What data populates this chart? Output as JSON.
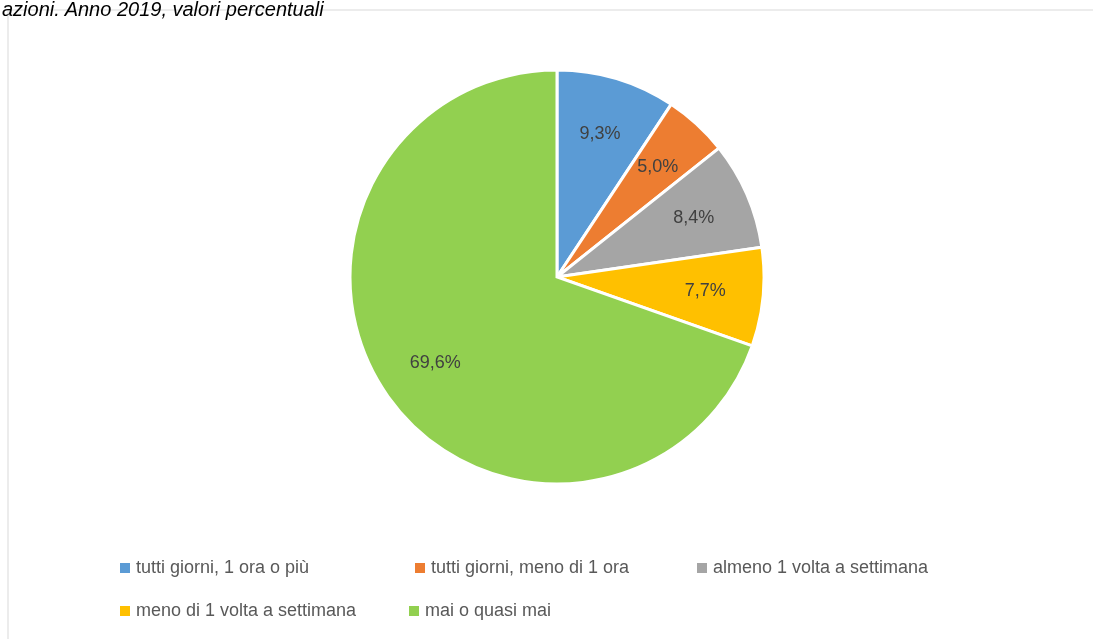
{
  "chart_data": {
    "type": "pie",
    "title": "azioni. Anno 2019, valori percentuali",
    "categories": [
      "tutti giorni, 1 ora o più",
      "tutti giorni, meno di 1 ora",
      "almeno 1 volta a settimana",
      "meno di 1 volta a settimana",
      "mai o quasi mai"
    ],
    "values": [
      9.3,
      5.0,
      8.4,
      7.7,
      69.6
    ],
    "value_labels": [
      "9,3%",
      "5,0%",
      "8,4%",
      "7,7%",
      "69,6%"
    ],
    "colors": [
      "#5b9bd5",
      "#ed7d31",
      "#a5a5a5",
      "#ffc000",
      "#92d050"
    ],
    "legend": "bottom"
  }
}
